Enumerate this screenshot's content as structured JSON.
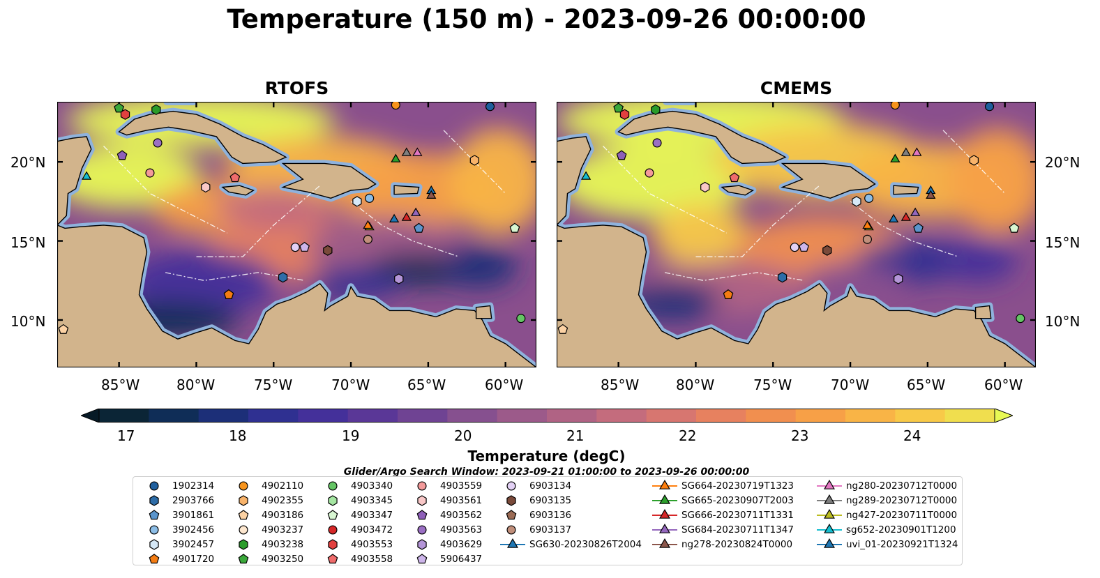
{
  "title": "Temperature (150 m) - 2023-09-26 00:00:00",
  "panels": [
    {
      "title": "RTOFS"
    },
    {
      "title": "CMEMS"
    }
  ],
  "lon_ticks": [
    "85°W",
    "80°W",
    "75°W",
    "70°W",
    "65°W",
    "60°W"
  ],
  "lat_ticks": [
    "20°N",
    "15°N",
    "10°N"
  ],
  "colorbar": {
    "label": "Temperature (degC)",
    "ticks": [
      "17",
      "18",
      "19",
      "20",
      "21",
      "22",
      "23",
      "24"
    ],
    "colors": [
      "#0b2536",
      "#0f2d57",
      "#1c2f78",
      "#2f3091",
      "#44309a",
      "#5a3797",
      "#6f4393",
      "#86508f",
      "#9c5a8a",
      "#b06384",
      "#c46c7d",
      "#d77670",
      "#e7815f",
      "#f18f4f",
      "#f7a047",
      "#f9b446",
      "#f8c948",
      "#f0de4e"
    ],
    "under_color": "#071a26",
    "over_color": "#e8f955"
  },
  "search_window": "Glider/Argo Search Window: 2023-09-21 01:00:00 to 2023-09-26 00:00:00",
  "legend": {
    "columns": [
      [
        {
          "label": "1902314",
          "marker": "circle",
          "color": "#1f5f9e"
        },
        {
          "label": "2903766",
          "marker": "hexagon",
          "color": "#2e6da8"
        },
        {
          "label": "3901861",
          "marker": "pentagon",
          "color": "#5b95cc"
        },
        {
          "label": "3902456",
          "marker": "circle",
          "color": "#8cbde6"
        },
        {
          "label": "3902457",
          "marker": "hexagon",
          "color": "#d6e8f7"
        },
        {
          "label": "4901720",
          "marker": "pentagon",
          "color": "#f47c12"
        }
      ],
      [
        {
          "label": "4902110",
          "marker": "circle",
          "color": "#f7941d"
        },
        {
          "label": "4902355",
          "marker": "hexagon",
          "color": "#f8b36a"
        },
        {
          "label": "4903186",
          "marker": "pentagon",
          "color": "#fcd2a4"
        },
        {
          "label": "4903237",
          "marker": "circle",
          "color": "#fde7cf"
        },
        {
          "label": "4903238",
          "marker": "hexagon",
          "color": "#2a9c2a"
        },
        {
          "label": "4903250",
          "marker": "pentagon",
          "color": "#3aa83a"
        }
      ],
      [
        {
          "label": "4903340",
          "marker": "circle",
          "color": "#64c464"
        },
        {
          "label": "4903345",
          "marker": "hexagon",
          "color": "#a5e6a2"
        },
        {
          "label": "4903347",
          "marker": "pentagon",
          "color": "#d8f6d2"
        },
        {
          "label": "4903472",
          "marker": "circle",
          "color": "#d62728"
        },
        {
          "label": "4903553",
          "marker": "hexagon",
          "color": "#e2403f"
        },
        {
          "label": "4903558",
          "marker": "pentagon",
          "color": "#ef6b6b"
        }
      ],
      [
        {
          "label": "4903559",
          "marker": "circle",
          "color": "#f39a9a"
        },
        {
          "label": "4903561",
          "marker": "hexagon",
          "color": "#f9c8c8"
        },
        {
          "label": "4903562",
          "marker": "pentagon",
          "color": "#8e5fb8"
        },
        {
          "label": "4903563",
          "marker": "circle",
          "color": "#9b6fc4"
        },
        {
          "label": "4903629",
          "marker": "hexagon",
          "color": "#b495d8"
        },
        {
          "label": "5906437",
          "marker": "pentagon",
          "color": "#cdb5ea"
        }
      ],
      [
        {
          "label": "6903134",
          "marker": "circle",
          "color": "#e3d1f5"
        },
        {
          "label": "6903135",
          "marker": "hexagon",
          "color": "#7a4a3a"
        },
        {
          "label": "6903136",
          "marker": "pentagon",
          "color": "#9b6b55"
        },
        {
          "label": "6903137",
          "marker": "circle",
          "color": "#c18f7b"
        },
        {
          "label": "SG630-20230826T2004",
          "marker": "triangle-line",
          "color": "#1f77b4"
        }
      ],
      [
        {
          "label": "SG664-20230719T1323",
          "marker": "triangle-line",
          "color": "#ff7f0e"
        },
        {
          "label": "SG665-20230907T2003",
          "marker": "triangle-line",
          "color": "#2ca02c"
        },
        {
          "label": "SG666-20230711T1331",
          "marker": "triangle-line",
          "color": "#d62728"
        },
        {
          "label": "SG684-20230711T1347",
          "marker": "triangle-line",
          "color": "#9467bd"
        },
        {
          "label": "ng278-20230824T0000",
          "marker": "triangle-line",
          "color": "#8c564b"
        }
      ],
      [
        {
          "label": "ng280-20230712T0000",
          "marker": "triangle-line",
          "color": "#e377c2"
        },
        {
          "label": "ng289-20230712T0000",
          "marker": "triangle-line",
          "color": "#7f7f7f"
        },
        {
          "label": "ng427-20230711T0000",
          "marker": "triangle-line",
          "color": "#bcbd22"
        },
        {
          "label": "sg652-20230901T1200",
          "marker": "triangle-line",
          "color": "#17becf"
        },
        {
          "label": "uvi_01-20230921T1324",
          "marker": "triangle-line",
          "color": "#1f77b4"
        }
      ]
    ]
  },
  "map_colors": {
    "land": "#d2b48c",
    "shelf": "#8fb2dc",
    "coast": "#000000"
  },
  "markers": [
    {
      "lon": -85.0,
      "lat": 23.4,
      "marker": "pentagon",
      "color": "#3aa83a"
    },
    {
      "lon": -84.6,
      "lat": 23.0,
      "marker": "hexagon",
      "color": "#e2403f"
    },
    {
      "lon": -82.6,
      "lat": 23.3,
      "marker": "hexagon",
      "color": "#2a9c2a"
    },
    {
      "lon": -67.1,
      "lat": 23.6,
      "marker": "circle",
      "color": "#f7941d"
    },
    {
      "lon": -61.0,
      "lat": 23.5,
      "marker": "circle",
      "color": "#1f5f9e"
    },
    {
      "lon": -84.8,
      "lat": 20.4,
      "marker": "pentagon",
      "color": "#8e5fb8"
    },
    {
      "lon": -82.5,
      "lat": 21.2,
      "marker": "circle",
      "color": "#9b6fc4"
    },
    {
      "lon": -83.0,
      "lat": 19.3,
      "marker": "circle",
      "color": "#f39a9a"
    },
    {
      "lon": -79.4,
      "lat": 18.4,
      "marker": "hexagon",
      "color": "#f9c8c8"
    },
    {
      "lon": -77.5,
      "lat": 19.0,
      "marker": "pentagon",
      "color": "#ef6b6b"
    },
    {
      "lon": -62.0,
      "lat": 20.1,
      "marker": "hexagon",
      "color": "#f8b36a"
    },
    {
      "lon": -68.8,
      "lat": 17.7,
      "marker": "circle",
      "color": "#8cbde6"
    },
    {
      "lon": -69.6,
      "lat": 17.5,
      "marker": "hexagon",
      "color": "#d6e8f7"
    },
    {
      "lon": -65.6,
      "lat": 15.8,
      "marker": "pentagon",
      "color": "#5b95cc"
    },
    {
      "lon": -59.4,
      "lat": 15.8,
      "marker": "pentagon",
      "color": "#d8f6d2"
    },
    {
      "lon": -73.6,
      "lat": 14.6,
      "marker": "circle",
      "color": "#e3d1f5"
    },
    {
      "lon": -73.0,
      "lat": 14.6,
      "marker": "pentagon",
      "color": "#cdb5ea"
    },
    {
      "lon": -71.5,
      "lat": 14.4,
      "marker": "hexagon",
      "color": "#7a4a3a"
    },
    {
      "lon": -68.9,
      "lat": 15.1,
      "marker": "circle",
      "color": "#c18f7b"
    },
    {
      "lon": -74.4,
      "lat": 12.7,
      "marker": "hexagon",
      "color": "#2e6da8"
    },
    {
      "lon": -66.9,
      "lat": 12.6,
      "marker": "hexagon",
      "color": "#b495d8"
    },
    {
      "lon": -77.9,
      "lat": 11.6,
      "marker": "pentagon",
      "color": "#f47c12"
    },
    {
      "lon": -59.0,
      "lat": 10.1,
      "marker": "circle",
      "color": "#64c464"
    },
    {
      "lon": -88.6,
      "lat": 9.4,
      "marker": "pentagon",
      "color": "#fcd2a4"
    },
    {
      "lon": -87.1,
      "lat": 19.1,
      "marker": "triangle",
      "color": "#17becf"
    },
    {
      "lon": -67.1,
      "lat": 20.2,
      "marker": "triangle",
      "color": "#2ca02c"
    },
    {
      "lon": -66.4,
      "lat": 20.6,
      "marker": "triangle",
      "color": "#7f7f7f"
    },
    {
      "lon": -65.7,
      "lat": 20.6,
      "marker": "triangle",
      "color": "#e377c2"
    },
    {
      "lon": -64.8,
      "lat": 18.2,
      "marker": "triangle",
      "color": "#1f77b4"
    },
    {
      "lon": -64.8,
      "lat": 17.9,
      "marker": "triangle",
      "color": "#8c564b"
    },
    {
      "lon": -67.2,
      "lat": 16.4,
      "marker": "triangle",
      "color": "#1f77b4"
    },
    {
      "lon": -66.4,
      "lat": 16.5,
      "marker": "triangle",
      "color": "#d62728"
    },
    {
      "lon": -65.8,
      "lat": 16.8,
      "marker": "triangle",
      "color": "#9467bd"
    },
    {
      "lon": -68.8,
      "lat": 15.9,
      "marker": "triangle",
      "color": "#bcbd22"
    },
    {
      "lon": -68.9,
      "lat": 16.0,
      "marker": "triangle",
      "color": "#ff7f0e"
    }
  ]
}
